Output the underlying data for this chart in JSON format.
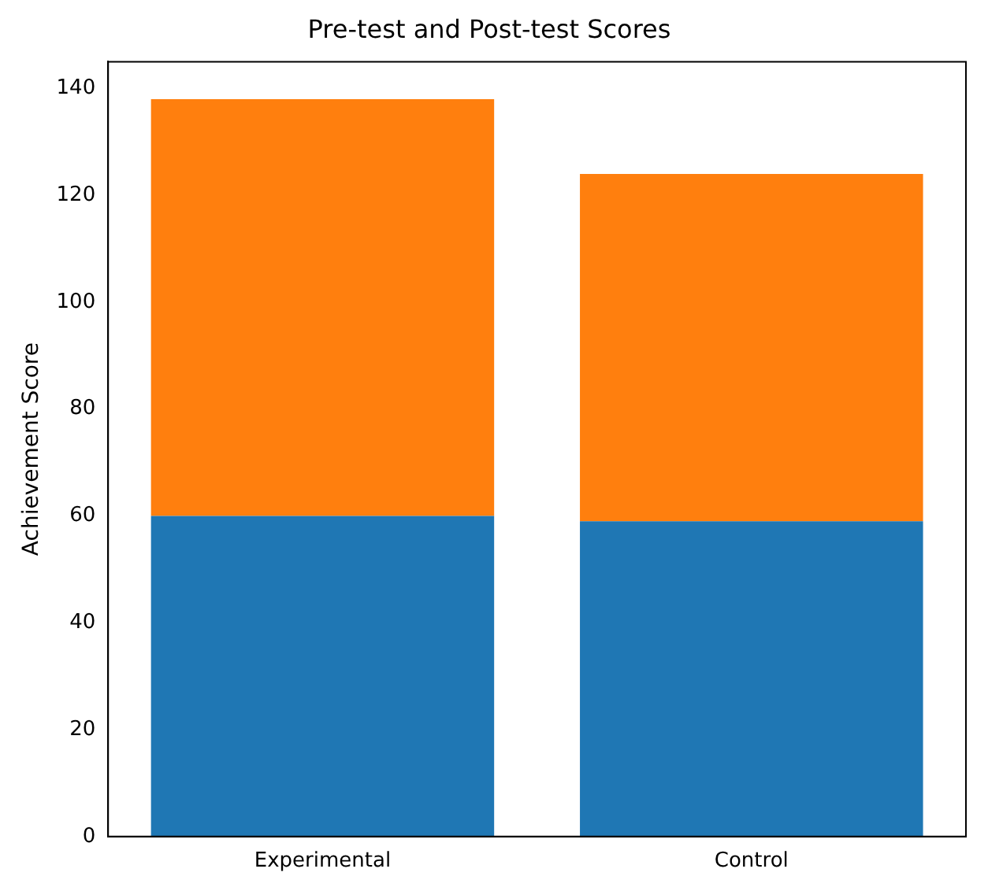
{
  "chart_data": {
    "type": "bar",
    "title": "Pre-test and Post-test Scores",
    "ylabel": "Achievement Score",
    "categories": [
      "Experimental",
      "Control"
    ],
    "stacked": true,
    "series": [
      {
        "color": "#1f77b4",
        "values": [
          60,
          59
        ]
      },
      {
        "color": "#ff7f0e",
        "values": [
          78,
          65
        ]
      }
    ],
    "ylim": [
      0,
      145
    ],
    "yticks": [
      0,
      20,
      40,
      60,
      80,
      100,
      120,
      140
    ],
    "grid": false,
    "legend": false
  }
}
